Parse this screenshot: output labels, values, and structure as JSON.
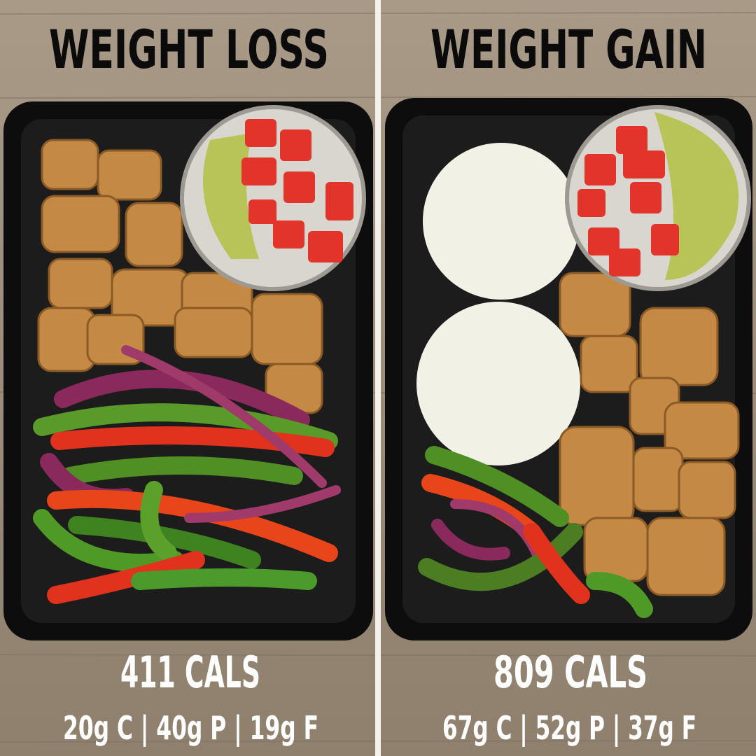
{
  "panels": [
    {
      "title": "WEIGHT LOSS",
      "calories": "411 CALS",
      "macros": "20g C | 40g P | 19g F"
    },
    {
      "title": "WEIGHT GAIN",
      "calories": "809 CALS",
      "macros": "67g C | 52g P | 37g F"
    }
  ]
}
